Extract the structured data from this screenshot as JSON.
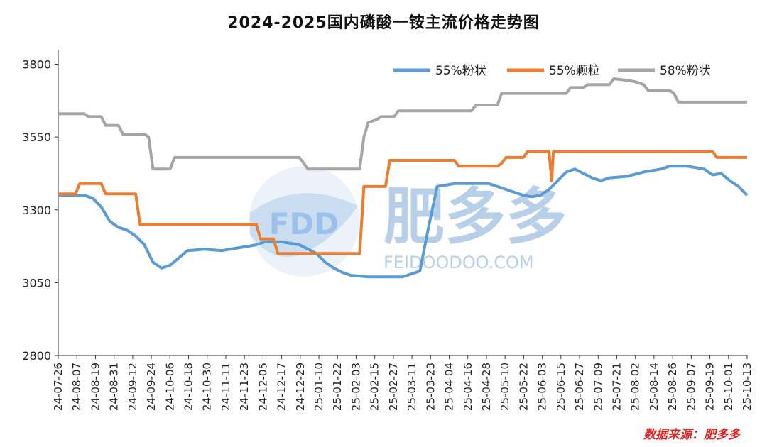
{
  "title": "2024-2025国内磷酸一铵主流价格走势图",
  "source": "数据来源：肥多多",
  "watermark": {
    "logo_text": "FDD",
    "brand_text": "肥多多",
    "site_text": "FEIDOODOO.COM"
  },
  "colors": {
    "s55p": "#5b9bd5",
    "s55g": "#ed7d31",
    "s58p": "#a5a5a5"
  },
  "chart_data": {
    "type": "line",
    "ylim": [
      2800,
      3850
    ],
    "yticks": [
      2800,
      3050,
      3300,
      3550,
      3800
    ],
    "grid": false,
    "legend": "top-right",
    "x_tick_labels": [
      "24-07-26",
      "24-08-07",
      "24-08-19",
      "24-08-31",
      "24-09-12",
      "24-09-24",
      "24-10-06",
      "24-10-18",
      "24-10-30",
      "24-11-11",
      "24-11-23",
      "24-12-05",
      "24-12-17",
      "24-12-29",
      "25-01-10",
      "25-01-22",
      "25-02-03",
      "25-02-15",
      "25-02-27",
      "25-03-11",
      "25-03-23",
      "25-04-04",
      "25-04-16",
      "25-04-28",
      "25-05-10",
      "25-05-22",
      "25-06-03",
      "25-06-15",
      "25-06-27",
      "25-07-09",
      "25-07-21",
      "25-08-02",
      "25-08-14",
      "25-08-26",
      "25-09-07",
      "25-09-19",
      "25-10-01",
      "25-10-13"
    ],
    "series": [
      {
        "name": "55%粉状",
        "color": "#5b9bd5",
        "points": [
          [
            0,
            3350
          ],
          [
            3,
            3350
          ],
          [
            4,
            3340
          ],
          [
            5,
            3310
          ],
          [
            6,
            3260
          ],
          [
            7,
            3240
          ],
          [
            8,
            3230
          ],
          [
            9,
            3210
          ],
          [
            10,
            3180
          ],
          [
            11,
            3120
          ],
          [
            12,
            3100
          ],
          [
            13,
            3110
          ],
          [
            14,
            3135
          ],
          [
            15,
            3160
          ],
          [
            17,
            3165
          ],
          [
            19,
            3160
          ],
          [
            21,
            3170
          ],
          [
            22,
            3175
          ],
          [
            23,
            3180
          ],
          [
            24,
            3190
          ],
          [
            26,
            3190
          ],
          [
            28,
            3180
          ],
          [
            30,
            3150
          ],
          [
            31,
            3120
          ],
          [
            32,
            3100
          ],
          [
            33,
            3085
          ],
          [
            34,
            3075
          ],
          [
            36,
            3070
          ],
          [
            38,
            3070
          ],
          [
            40,
            3070
          ],
          [
            41,
            3080
          ],
          [
            42,
            3090
          ],
          [
            43,
            3240
          ],
          [
            44,
            3380
          ],
          [
            46,
            3390
          ],
          [
            48,
            3390
          ],
          [
            50,
            3390
          ],
          [
            51,
            3380
          ],
          [
            52,
            3370
          ],
          [
            53,
            3360
          ],
          [
            54,
            3350
          ],
          [
            55,
            3345
          ],
          [
            56,
            3350
          ],
          [
            57,
            3370
          ],
          [
            58,
            3400
          ],
          [
            59,
            3430
          ],
          [
            60,
            3440
          ],
          [
            61,
            3425
          ],
          [
            62,
            3410
          ],
          [
            63,
            3400
          ],
          [
            64,
            3410
          ],
          [
            66,
            3415
          ],
          [
            68,
            3430
          ],
          [
            70,
            3440
          ],
          [
            71,
            3450
          ],
          [
            73,
            3450
          ],
          [
            74,
            3445
          ],
          [
            75,
            3440
          ],
          [
            76,
            3420
          ],
          [
            77,
            3425
          ],
          [
            78,
            3400
          ],
          [
            79,
            3380
          ],
          [
            80,
            3350
          ]
        ]
      },
      {
        "name": "55%颗粒",
        "color": "#ed7d31",
        "points": [
          [
            0,
            3355
          ],
          [
            2,
            3355
          ],
          [
            2.5,
            3390
          ],
          [
            5,
            3390
          ],
          [
            5.5,
            3355
          ],
          [
            9,
            3355
          ],
          [
            9.5,
            3250
          ],
          [
            23,
            3250
          ],
          [
            23.5,
            3200
          ],
          [
            25,
            3200
          ],
          [
            25.5,
            3150
          ],
          [
            35,
            3150
          ],
          [
            35.5,
            3380
          ],
          [
            38,
            3380
          ],
          [
            38.5,
            3470
          ],
          [
            46,
            3470
          ],
          [
            46.5,
            3450
          ],
          [
            51,
            3450
          ],
          [
            51.5,
            3460
          ],
          [
            52,
            3480
          ],
          [
            54,
            3480
          ],
          [
            54.5,
            3500
          ],
          [
            57,
            3500
          ],
          [
            57.3,
            3400
          ],
          [
            57.5,
            3500
          ],
          [
            76,
            3500
          ],
          [
            76.5,
            3480
          ],
          [
            80,
            3480
          ]
        ]
      },
      {
        "name": "58%粉状",
        "color": "#a5a5a5",
        "points": [
          [
            0,
            3630
          ],
          [
            3,
            3630
          ],
          [
            3.5,
            3620
          ],
          [
            5,
            3620
          ],
          [
            5.5,
            3590
          ],
          [
            7,
            3590
          ],
          [
            7.5,
            3560
          ],
          [
            10,
            3560
          ],
          [
            10.5,
            3550
          ],
          [
            11,
            3440
          ],
          [
            13,
            3440
          ],
          [
            13.5,
            3480
          ],
          [
            28,
            3480
          ],
          [
            28.5,
            3460
          ],
          [
            29,
            3440
          ],
          [
            35,
            3440
          ],
          [
            35.5,
            3550
          ],
          [
            36,
            3600
          ],
          [
            37,
            3610
          ],
          [
            37.5,
            3620
          ],
          [
            39,
            3620
          ],
          [
            39.5,
            3640
          ],
          [
            48,
            3640
          ],
          [
            48.5,
            3660
          ],
          [
            51,
            3660
          ],
          [
            51.5,
            3700
          ],
          [
            59,
            3700
          ],
          [
            59.5,
            3720
          ],
          [
            61,
            3720
          ],
          [
            61.5,
            3730
          ],
          [
            64,
            3730
          ],
          [
            64.5,
            3750
          ],
          [
            66,
            3745
          ],
          [
            67,
            3740
          ],
          [
            68,
            3730
          ],
          [
            68.5,
            3710
          ],
          [
            71,
            3710
          ],
          [
            71.5,
            3700
          ],
          [
            72,
            3670
          ],
          [
            80,
            3670
          ]
        ]
      }
    ],
    "x_count": 80
  }
}
